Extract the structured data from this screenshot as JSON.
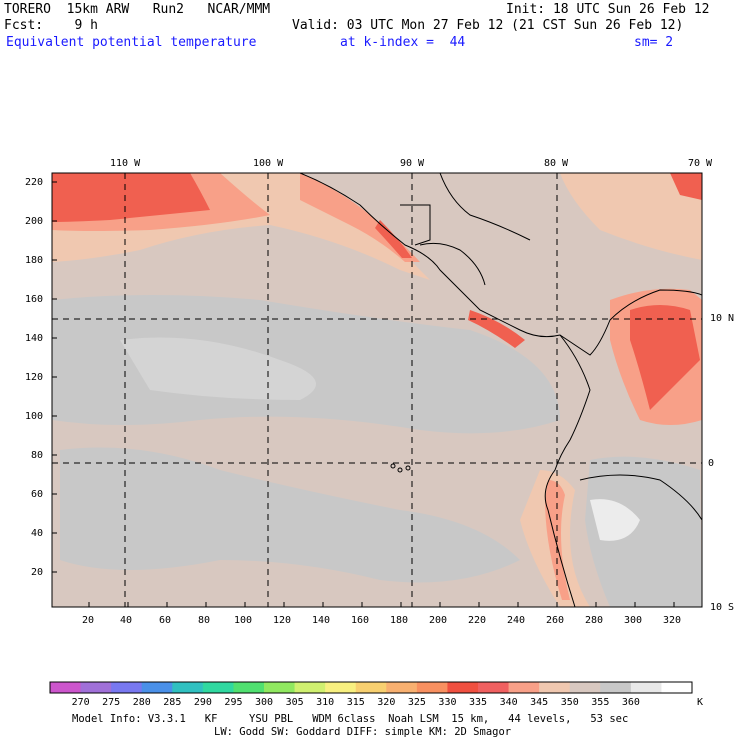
{
  "header": {
    "run": "TORERO  15km ARW   Run2   NCAR/MMM",
    "init": "Init: 18 UTC Sun 26 Feb 12",
    "fcst": "Fcst:    9 h",
    "valid": "Valid: 03 UTC Mon 27 Feb 12 (21 CST Sun 26 Feb 12)",
    "field": "Equivalent potential temperature",
    "level": "at k-index =  44",
    "smoothing": "sm= 2"
  },
  "axes": {
    "top_lon": [
      "110 W",
      "100 W",
      "90 W",
      "80 W",
      "70 W"
    ],
    "right_lat": [
      "10 N",
      "0",
      "10 S"
    ],
    "left_y": [
      "220",
      "200",
      "180",
      "160",
      "140",
      "120",
      "100",
      "80",
      "60",
      "40",
      "20"
    ],
    "bottom_x": [
      "20",
      "40",
      "60",
      "80",
      "100",
      "120",
      "140",
      "160",
      "180",
      "200",
      "220",
      "240",
      "260",
      "280",
      "300",
      "320"
    ]
  },
  "colorbar": {
    "labels": [
      "270",
      "275",
      "280",
      "285",
      "290",
      "295",
      "300",
      "305",
      "310",
      "315",
      "320",
      "325",
      "330",
      "335",
      "340",
      "345",
      "350",
      "355",
      "360"
    ],
    "unit": "K",
    "colors": [
      "#cc55cc",
      "#a070d8",
      "#7878f0",
      "#4a90e8",
      "#30c0c0",
      "#30d8a0",
      "#50e070",
      "#90e860",
      "#d0f070",
      "#f8f080",
      "#f8d070",
      "#f8b070",
      "#f89060",
      "#f05040",
      "#f06060",
      "#f8a088",
      "#f0c8b0",
      "#d8c8c0",
      "#c8c8c8",
      "#e8e8e8",
      "#ffffff"
    ]
  },
  "footer": {
    "line1": "Model Info: V3.3.1   KF     YSU PBL   WDM 6class  Noah LSM  15 km,   44 levels,   53 sec",
    "line2": "LW: Godd SW: Goddard DIFF: simple KM: 2D Smagor"
  }
}
